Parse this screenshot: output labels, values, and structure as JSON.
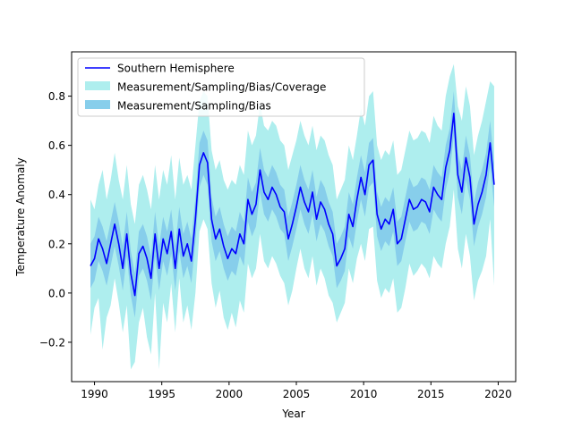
{
  "chart_data": {
    "type": "line",
    "xlabel": "Year",
    "ylabel": "Temperature Anomaly",
    "xlim": [
      1988.3,
      2021.3
    ],
    "ylim": [
      -0.36,
      0.98
    ],
    "xticks": [
      1990,
      1995,
      2000,
      2005,
      2010,
      2015,
      2020
    ],
    "xtick_labels": [
      "1990",
      "1995",
      "2000",
      "2005",
      "2010",
      "2015",
      "2020"
    ],
    "yticks": [
      -0.2,
      0.0,
      0.2,
      0.4,
      0.6,
      0.8
    ],
    "ytick_labels": [
      "−0.2",
      "0.0",
      "0.2",
      "0.4",
      "0.6",
      "0.8"
    ],
    "grid": false,
    "legend_position": "top-left",
    "colors": {
      "line": "#0000ff",
      "outer_band": "#aeeeee",
      "inner_band": "#87ceeb"
    },
    "series": [
      {
        "name": "Southern Hemisphere",
        "kind": "line",
        "x": [
          1989.7,
          1990.0,
          1990.3,
          1990.6,
          1990.9,
          1991.2,
          1991.5,
          1991.8,
          1992.1,
          1992.4,
          1992.7,
          1993.0,
          1993.3,
          1993.6,
          1993.9,
          1994.2,
          1994.5,
          1994.8,
          1995.1,
          1995.4,
          1995.7,
          1996.0,
          1996.3,
          1996.6,
          1996.9,
          1997.2,
          1997.5,
          1997.8,
          1998.1,
          1998.4,
          1998.7,
          1999.0,
          1999.3,
          1999.6,
          1999.9,
          2000.2,
          2000.5,
          2000.8,
          2001.1,
          2001.4,
          2001.7,
          2002.0,
          2002.3,
          2002.6,
          2002.9,
          2003.2,
          2003.5,
          2003.8,
          2004.1,
          2004.4,
          2004.7,
          2005.0,
          2005.3,
          2005.6,
          2005.9,
          2006.2,
          2006.5,
          2006.8,
          2007.1,
          2007.4,
          2007.7,
          2008.0,
          2008.3,
          2008.6,
          2008.9,
          2009.2,
          2009.5,
          2009.8,
          2010.1,
          2010.4,
          2010.7,
          2011.0,
          2011.3,
          2011.6,
          2011.9,
          2012.2,
          2012.5,
          2012.8,
          2013.1,
          2013.4,
          2013.7,
          2014.0,
          2014.3,
          2014.6,
          2014.9,
          2015.2,
          2015.5,
          2015.8,
          2016.1,
          2016.4,
          2016.7,
          2017.0,
          2017.3,
          2017.6,
          2017.9,
          2018.2,
          2018.5,
          2018.8,
          2019.1,
          2019.4,
          2019.7
        ],
        "values": [
          0.11,
          0.14,
          0.22,
          0.18,
          0.12,
          0.2,
          0.28,
          0.2,
          0.1,
          0.24,
          0.08,
          -0.01,
          0.16,
          0.19,
          0.14,
          0.06,
          0.24,
          0.1,
          0.22,
          0.16,
          0.25,
          0.1,
          0.26,
          0.15,
          0.2,
          0.13,
          0.3,
          0.52,
          0.57,
          0.53,
          0.3,
          0.22,
          0.26,
          0.19,
          0.14,
          0.18,
          0.16,
          0.24,
          0.2,
          0.38,
          0.32,
          0.36,
          0.5,
          0.41,
          0.38,
          0.43,
          0.4,
          0.35,
          0.33,
          0.22,
          0.28,
          0.35,
          0.43,
          0.37,
          0.33,
          0.41,
          0.3,
          0.37,
          0.34,
          0.28,
          0.24,
          0.11,
          0.14,
          0.18,
          0.32,
          0.27,
          0.38,
          0.47,
          0.4,
          0.52,
          0.54,
          0.32,
          0.26,
          0.3,
          0.28,
          0.34,
          0.2,
          0.22,
          0.3,
          0.38,
          0.34,
          0.35,
          0.38,
          0.37,
          0.33,
          0.43,
          0.4,
          0.38,
          0.51,
          0.58,
          0.73,
          0.48,
          0.41,
          0.55,
          0.47,
          0.28,
          0.36,
          0.41,
          0.48,
          0.61,
          0.44
        ]
      },
      {
        "name": "Measurement/Sampling/Bias/Coverage",
        "kind": "band",
        "lower": [
          -0.17,
          -0.06,
          -0.02,
          -0.23,
          -0.1,
          -0.05,
          0.06,
          -0.04,
          -0.16,
          -0.05,
          -0.31,
          -0.28,
          -0.12,
          -0.06,
          -0.18,
          -0.25,
          0.0,
          -0.31,
          -0.04,
          -0.12,
          0.04,
          -0.16,
          0.06,
          -0.12,
          -0.05,
          -0.15,
          0.0,
          0.25,
          0.3,
          0.26,
          0.04,
          -0.06,
          0.01,
          -0.1,
          -0.15,
          -0.08,
          -0.14,
          -0.03,
          -0.08,
          0.12,
          0.06,
          0.1,
          0.24,
          0.13,
          0.1,
          0.15,
          0.12,
          0.07,
          0.04,
          -0.05,
          0.01,
          0.1,
          0.18,
          0.1,
          0.06,
          0.15,
          0.03,
          0.1,
          0.06,
          -0.01,
          -0.04,
          -0.12,
          -0.08,
          -0.04,
          0.1,
          0.04,
          0.14,
          0.2,
          0.13,
          0.26,
          0.27,
          0.05,
          -0.02,
          0.02,
          0.0,
          0.06,
          -0.08,
          -0.06,
          0.02,
          0.12,
          0.07,
          0.09,
          0.12,
          0.1,
          0.06,
          0.15,
          0.12,
          0.1,
          0.2,
          0.27,
          0.42,
          0.18,
          0.1,
          0.24,
          0.15,
          -0.03,
          0.05,
          0.09,
          0.15,
          0.3,
          0.03
        ],
        "upper": [
          0.38,
          0.34,
          0.44,
          0.5,
          0.38,
          0.46,
          0.57,
          0.46,
          0.38,
          0.52,
          0.36,
          0.28,
          0.44,
          0.48,
          0.42,
          0.34,
          0.52,
          0.38,
          0.5,
          0.44,
          0.56,
          0.38,
          0.55,
          0.44,
          0.48,
          0.42,
          0.6,
          0.78,
          0.82,
          0.8,
          0.58,
          0.5,
          0.54,
          0.46,
          0.42,
          0.46,
          0.44,
          0.52,
          0.48,
          0.66,
          0.6,
          0.64,
          0.77,
          0.68,
          0.66,
          0.7,
          0.68,
          0.62,
          0.6,
          0.5,
          0.56,
          0.62,
          0.7,
          0.64,
          0.6,
          0.68,
          0.58,
          0.64,
          0.62,
          0.56,
          0.52,
          0.38,
          0.42,
          0.46,
          0.6,
          0.54,
          0.64,
          0.75,
          0.68,
          0.8,
          0.82,
          0.6,
          0.54,
          0.58,
          0.56,
          0.62,
          0.48,
          0.5,
          0.58,
          0.66,
          0.62,
          0.63,
          0.66,
          0.65,
          0.61,
          0.72,
          0.68,
          0.66,
          0.8,
          0.88,
          0.93,
          0.76,
          0.7,
          0.84,
          0.76,
          0.56,
          0.64,
          0.7,
          0.78,
          0.86,
          0.84
        ]
      },
      {
        "name": "Measurement/Sampling/Bias",
        "kind": "band",
        "lower": [
          0.02,
          0.05,
          0.13,
          0.09,
          0.03,
          0.11,
          0.19,
          0.11,
          0.01,
          0.15,
          -0.01,
          -0.1,
          0.07,
          0.1,
          0.05,
          -0.03,
          0.15,
          0.01,
          0.13,
          0.07,
          0.16,
          0.01,
          0.17,
          0.06,
          0.11,
          0.04,
          0.21,
          0.43,
          0.48,
          0.44,
          0.21,
          0.13,
          0.17,
          0.1,
          0.05,
          0.09,
          0.07,
          0.15,
          0.11,
          0.29,
          0.23,
          0.27,
          0.41,
          0.32,
          0.29,
          0.34,
          0.31,
          0.26,
          0.24,
          0.13,
          0.19,
          0.26,
          0.34,
          0.28,
          0.24,
          0.32,
          0.21,
          0.28,
          0.25,
          0.19,
          0.15,
          0.02,
          0.05,
          0.09,
          0.23,
          0.18,
          0.29,
          0.38,
          0.31,
          0.43,
          0.45,
          0.23,
          0.17,
          0.21,
          0.19,
          0.25,
          0.11,
          0.13,
          0.21,
          0.29,
          0.25,
          0.26,
          0.29,
          0.28,
          0.24,
          0.34,
          0.31,
          0.29,
          0.42,
          0.49,
          0.64,
          0.39,
          0.32,
          0.46,
          0.38,
          0.19,
          0.27,
          0.32,
          0.39,
          0.52,
          0.35
        ],
        "upper": [
          0.2,
          0.23,
          0.31,
          0.27,
          0.21,
          0.29,
          0.37,
          0.29,
          0.19,
          0.33,
          0.17,
          0.08,
          0.25,
          0.28,
          0.23,
          0.15,
          0.33,
          0.19,
          0.31,
          0.25,
          0.34,
          0.19,
          0.35,
          0.24,
          0.29,
          0.22,
          0.39,
          0.61,
          0.66,
          0.62,
          0.39,
          0.31,
          0.35,
          0.28,
          0.23,
          0.27,
          0.25,
          0.33,
          0.29,
          0.47,
          0.41,
          0.45,
          0.59,
          0.5,
          0.47,
          0.52,
          0.49,
          0.44,
          0.42,
          0.31,
          0.37,
          0.44,
          0.52,
          0.46,
          0.42,
          0.5,
          0.39,
          0.46,
          0.43,
          0.37,
          0.33,
          0.2,
          0.23,
          0.27,
          0.41,
          0.36,
          0.47,
          0.56,
          0.49,
          0.61,
          0.63,
          0.41,
          0.35,
          0.39,
          0.37,
          0.43,
          0.29,
          0.31,
          0.39,
          0.47,
          0.43,
          0.44,
          0.47,
          0.46,
          0.42,
          0.52,
          0.49,
          0.47,
          0.6,
          0.67,
          0.82,
          0.57,
          0.5,
          0.64,
          0.56,
          0.37,
          0.45,
          0.5,
          0.57,
          0.7,
          0.53
        ]
      }
    ]
  }
}
